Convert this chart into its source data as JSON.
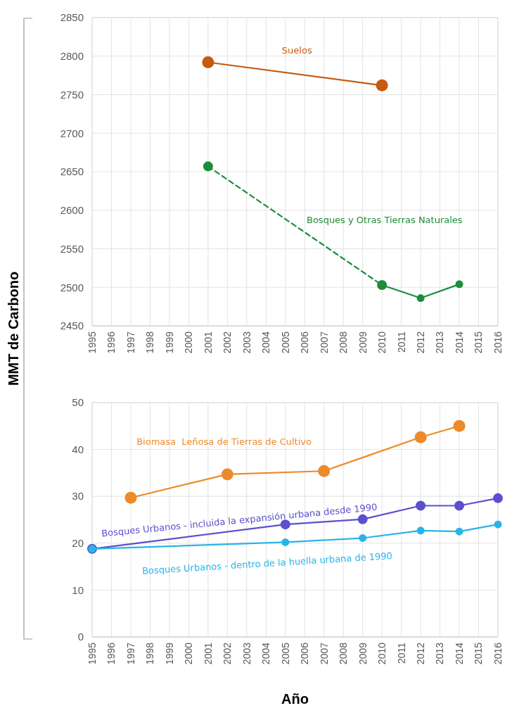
{
  "chart_data": [
    {
      "type": "line",
      "ylabel": "MMT de Carbono",
      "xlim": [
        1995,
        2016
      ],
      "xticks": [
        1995,
        1996,
        1997,
        1998,
        1999,
        2000,
        2001,
        2002,
        2003,
        2004,
        2005,
        2006,
        2007,
        2008,
        2009,
        2010,
        2011,
        2012,
        2013,
        2014,
        2015,
        2016
      ],
      "ylim": [
        2450,
        2850
      ],
      "yticks": [
        2450,
        2500,
        2550,
        2600,
        2650,
        2700,
        2750,
        2800,
        2850
      ],
      "grid": true,
      "marker": "circle",
      "series": [
        {
          "name": "Suelos",
          "color": "#c55a11",
          "x": [
            2001,
            2010
          ],
          "values": [
            2792,
            2762
          ]
        },
        {
          "color": "#1e8c3a",
          "x": [
            2001,
            2010
          ],
          "values": [
            2657,
            2503
          ],
          "line_style": "dashed"
        },
        {
          "name": "Bosques y Otras Tierras Naturales",
          "color": "#1e8c3a",
          "x": [
            2010,
            2012,
            2014
          ],
          "values": [
            2503,
            2486,
            2504
          ]
        }
      ]
    },
    {
      "type": "line",
      "xlabel": "Año",
      "xlim": [
        1995,
        2016
      ],
      "xticks": [
        1995,
        1996,
        1997,
        1998,
        1999,
        2000,
        2001,
        2002,
        2003,
        2004,
        2005,
        2006,
        2007,
        2008,
        2009,
        2010,
        2011,
        2012,
        2013,
        2014,
        2015,
        2016
      ],
      "ylim": [
        0,
        50
      ],
      "yticks": [
        0,
        10,
        20,
        30,
        40,
        50
      ],
      "grid": true,
      "marker": "circle",
      "series": [
        {
          "name": "Biomasa  Leñosa de Tierras de Cultivo",
          "color": "#ed8a2a",
          "x": [
            1997,
            2002,
            2007,
            2012,
            2014
          ],
          "values": [
            29.7,
            34.7,
            35.4,
            42.6,
            45.0
          ]
        },
        {
          "name": "Bosques Urbanos - incluida la expansión urbana desde 1990",
          "color": "#5b4fcf",
          "x": [
            1995,
            2005,
            2009,
            2012,
            2014,
            2016
          ],
          "values": [
            18.8,
            24.0,
            25.1,
            28.0,
            28.0,
            29.6
          ]
        },
        {
          "name": "Bosques Urbanos - dentro de la huella urbana de 1990",
          "color": "#2ab3e8",
          "x": [
            1995,
            2005,
            2009,
            2012,
            2014,
            2016
          ],
          "values": [
            18.8,
            20.2,
            21.1,
            22.7,
            22.5,
            24.0
          ]
        }
      ]
    }
  ]
}
